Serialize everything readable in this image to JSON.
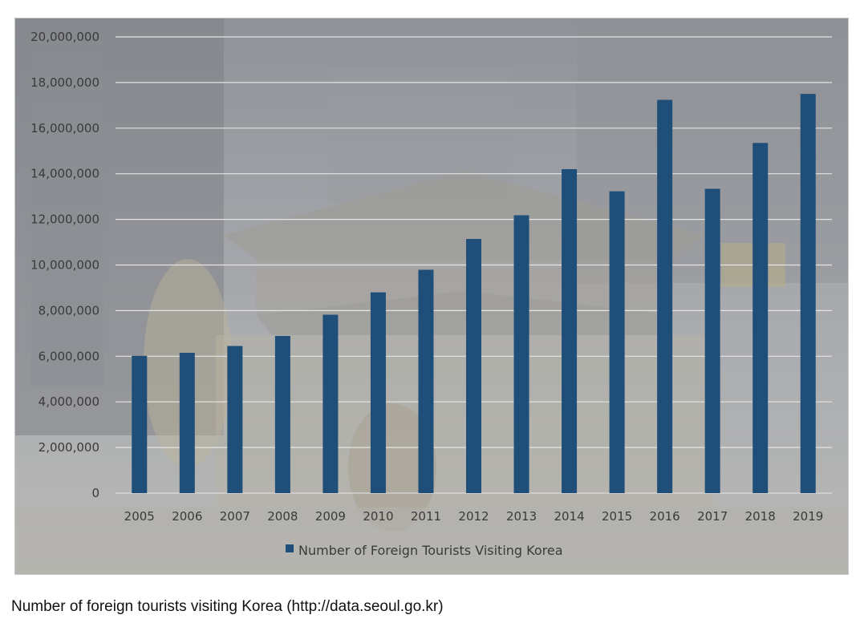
{
  "chart_data": {
    "type": "bar",
    "categories": [
      "2005",
      "2006",
      "2007",
      "2008",
      "2009",
      "2010",
      "2011",
      "2012",
      "2013",
      "2014",
      "2015",
      "2016",
      "2017",
      "2018",
      "2019"
    ],
    "series": [
      {
        "name": "Number of Foreign Tourists Visiting Korea",
        "values": [
          6020000,
          6150000,
          6450000,
          6890000,
          7820000,
          8800000,
          9790000,
          11140000,
          12180000,
          14200000,
          13230000,
          17240000,
          13340000,
          15350000,
          17500000
        ],
        "color": "#1f4e79"
      }
    ],
    "ylim": [
      0,
      20000000
    ],
    "yticks": [
      0,
      2000000,
      4000000,
      6000000,
      8000000,
      10000000,
      12000000,
      14000000,
      16000000,
      18000000,
      20000000
    ],
    "ytick_labels": [
      "0",
      "2,000,000",
      "4,000,000",
      "6,000,000",
      "8,000,000",
      "10,000,000",
      "12,000,000",
      "14,000,000",
      "16,000,000",
      "18,000,000",
      "20,000,000"
    ],
    "grid": true,
    "legend_position": "bottom",
    "background": "photo of Seoul gate at night, faded"
  },
  "caption": "Number of foreign tourists visiting Korea (http://data.seoul.go.kr)"
}
